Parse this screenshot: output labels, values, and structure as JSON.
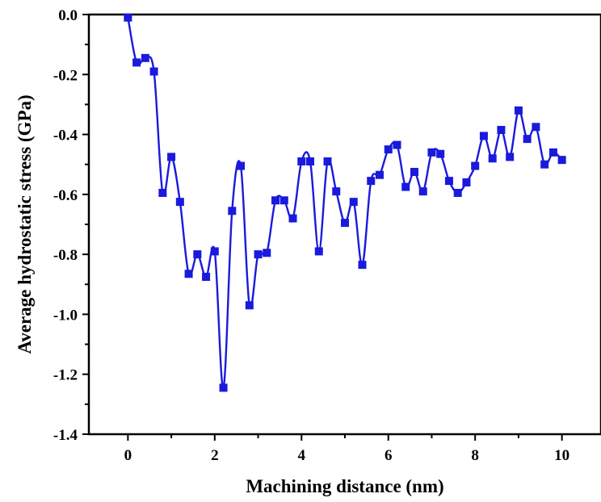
{
  "chart_data": {
    "type": "line",
    "title": "",
    "xlabel": "Machining distance (nm)",
    "ylabel": "Average hydrostatic stress (GPa)",
    "xlim": [
      -0.9,
      10.9
    ],
    "ylim": [
      -1.4,
      0.0
    ],
    "x_ticks": [
      0,
      2,
      4,
      6,
      8,
      10
    ],
    "x_tick_labels": [
      "0",
      "2",
      "4",
      "6",
      "8",
      "10"
    ],
    "y_ticks": [
      0.0,
      -0.2,
      -0.4,
      -0.6,
      -0.8,
      -1.0,
      -1.2,
      -1.4
    ],
    "y_tick_labels": [
      "0.0",
      "-0.2",
      "-0.4",
      "-0.6",
      "-0.8",
      "-1.0",
      "-1.2",
      "-1.4"
    ],
    "grid": false,
    "legend": "none",
    "series": [
      {
        "color": "#1a1adc",
        "marker": "square",
        "smooth": true,
        "x": [
          0.0,
          0.2,
          0.4,
          0.6,
          0.8,
          1.0,
          1.2,
          1.4,
          1.6,
          1.8,
          2.0,
          2.2,
          2.4,
          2.6,
          2.8,
          3.0,
          3.2,
          3.4,
          3.6,
          3.8,
          4.0,
          4.2,
          4.4,
          4.6,
          4.8,
          5.0,
          5.2,
          5.4,
          5.6,
          5.8,
          6.0,
          6.2,
          6.4,
          6.6,
          6.8,
          7.0,
          7.2,
          7.4,
          7.6,
          7.8,
          8.0,
          8.2,
          8.4,
          8.6,
          8.8,
          9.0,
          9.2,
          9.4,
          9.6,
          9.8,
          10.0
        ],
        "y": [
          -0.01,
          -0.16,
          -0.145,
          -0.19,
          -0.595,
          -0.475,
          -0.625,
          -0.865,
          -0.8,
          -0.875,
          -0.79,
          -1.245,
          -0.655,
          -0.505,
          -0.97,
          -0.8,
          -0.795,
          -0.62,
          -0.62,
          -0.68,
          -0.49,
          -0.49,
          -0.79,
          -0.49,
          -0.59,
          -0.695,
          -0.625,
          -0.835,
          -0.555,
          -0.535,
          -0.45,
          -0.435,
          -0.575,
          -0.525,
          -0.59,
          -0.46,
          -0.465,
          -0.555,
          -0.595,
          -0.56,
          -0.505,
          -0.405,
          -0.48,
          -0.385,
          -0.475,
          -0.32,
          -0.415,
          -0.375,
          -0.5,
          -0.46,
          -0.485
        ]
      }
    ]
  }
}
